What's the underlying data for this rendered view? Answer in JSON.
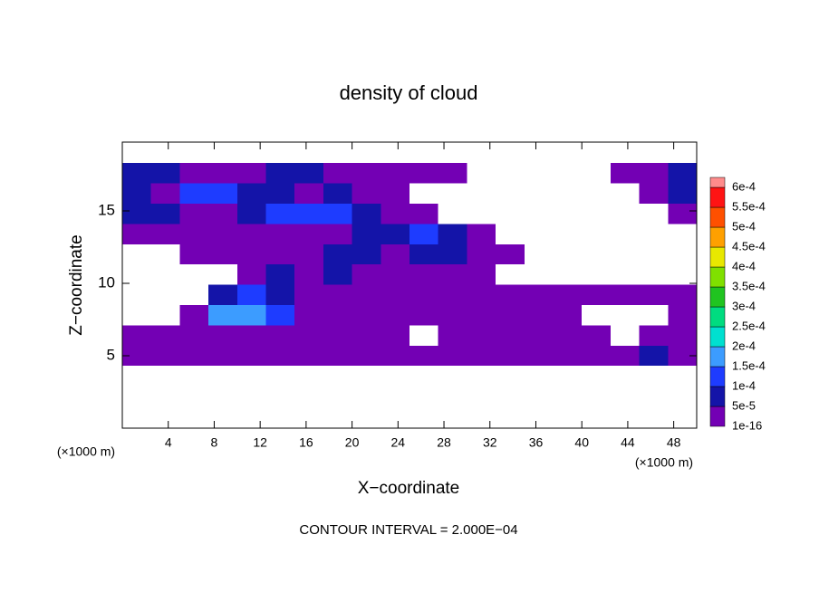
{
  "chart_data": {
    "type": "heatmap",
    "title": "density of cloud",
    "x_label": "X−coordinate",
    "y_label": "Z−coordinate",
    "x_unit": "(×1000 m)",
    "y_unit": "(×1000 m)",
    "footnote": "CONTOUR INTERVAL = 2.000E−04",
    "xlim": [
      0,
      50
    ],
    "ylim": [
      0,
      19.75
    ],
    "xticks": [
      4,
      8,
      12,
      16,
      20,
      24,
      28,
      32,
      36,
      40,
      44,
      48
    ],
    "yticks": [
      5,
      10,
      15
    ],
    "xbins": [
      0,
      2.5,
      5,
      7.5,
      10,
      12.5,
      15,
      17.5,
      20,
      22.5,
      25,
      27.5,
      30,
      32.5,
      35,
      37.5,
      40,
      42.5,
      45,
      47.5,
      50
    ],
    "ybins": [
      4.3,
      5.7,
      7.1,
      8.5,
      9.9,
      11.3,
      12.7,
      14.1,
      15.5,
      16.9,
      18.3
    ],
    "levels": [
      {
        "value": 1e-16,
        "label": "1e-16"
      },
      {
        "value": 5e-05,
        "label": "5e-5"
      },
      {
        "value": 0.0001,
        "label": "1e-4"
      },
      {
        "value": 0.00015,
        "label": "1.5e-4"
      },
      {
        "value": 0.0002,
        "label": "2e-4"
      },
      {
        "value": 0.00025,
        "label": "2.5e-4"
      },
      {
        "value": 0.0003,
        "label": "3e-4"
      },
      {
        "value": 0.00035,
        "label": "3.5e-4"
      },
      {
        "value": 0.0004,
        "label": "4e-4"
      },
      {
        "value": 0.00045,
        "label": "4.5e-4"
      },
      {
        "value": 0.0005,
        "label": "5e-4"
      },
      {
        "value": 0.00055,
        "label": "5.5e-4"
      },
      {
        "value": 0.0006,
        "label": "6e-4"
      }
    ],
    "colors": [
      "#7300b4",
      "#1414a8",
      "#1e3cff",
      "#3c9cff",
      "#00e0d0",
      "#00dc80",
      "#20c420",
      "#80e000",
      "#e8e800",
      "#ffa000",
      "#ff5000",
      "#ff1414",
      "#ff8c8c"
    ],
    "z": [
      [
        1e-16,
        1e-16,
        1e-16,
        1e-16,
        1e-16,
        1e-16,
        1e-16,
        1e-16,
        1e-16,
        1e-16,
        1e-16,
        1e-16,
        1e-16,
        1e-16,
        1e-16,
        1e-16,
        1e-16,
        1e-16,
        5e-05,
        1e-16
      ],
      [
        1e-16,
        1e-16,
        1e-16,
        1e-16,
        1e-16,
        1e-16,
        1e-16,
        1e-16,
        1e-16,
        1e-16,
        null,
        1e-16,
        1e-16,
        1e-16,
        1e-16,
        1e-16,
        1e-16,
        null,
        1e-16,
        1e-16
      ],
      [
        null,
        null,
        1e-16,
        0.00015,
        0.00015,
        0.0001,
        1e-16,
        1e-16,
        1e-16,
        1e-16,
        1e-16,
        1e-16,
        1e-16,
        1e-16,
        1e-16,
        1e-16,
        null,
        null,
        null,
        1e-16
      ],
      [
        null,
        null,
        null,
        5e-05,
        0.0001,
        5e-05,
        1e-16,
        1e-16,
        1e-16,
        1e-16,
        1e-16,
        1e-16,
        1e-16,
        1e-16,
        1e-16,
        1e-16,
        1e-16,
        1e-16,
        1e-16,
        1e-16
      ],
      [
        null,
        null,
        null,
        null,
        1e-16,
        5e-05,
        1e-16,
        5e-05,
        1e-16,
        1e-16,
        1e-16,
        1e-16,
        1e-16,
        null,
        null,
        null,
        null,
        null,
        null,
        null
      ],
      [
        null,
        null,
        1e-16,
        1e-16,
        1e-16,
        1e-16,
        1e-16,
        5e-05,
        5e-05,
        1e-16,
        5e-05,
        5e-05,
        1e-16,
        1e-16,
        null,
        null,
        null,
        null,
        null,
        null
      ],
      [
        1e-16,
        1e-16,
        1e-16,
        1e-16,
        1e-16,
        1e-16,
        1e-16,
        1e-16,
        5e-05,
        5e-05,
        0.0001,
        5e-05,
        1e-16,
        null,
        null,
        null,
        null,
        null,
        null,
        null
      ],
      [
        5e-05,
        5e-05,
        1e-16,
        1e-16,
        5e-05,
        0.0001,
        0.0001,
        0.0001,
        5e-05,
        1e-16,
        1e-16,
        null,
        null,
        null,
        null,
        null,
        null,
        null,
        null,
        1e-16
      ],
      [
        5e-05,
        1e-16,
        0.0001,
        0.0001,
        5e-05,
        5e-05,
        1e-16,
        5e-05,
        1e-16,
        1e-16,
        null,
        null,
        null,
        null,
        null,
        null,
        null,
        null,
        1e-16,
        5e-05
      ],
      [
        5e-05,
        5e-05,
        1e-16,
        1e-16,
        1e-16,
        5e-05,
        5e-05,
        1e-16,
        1e-16,
        1e-16,
        1e-16,
        1e-16,
        null,
        null,
        null,
        null,
        null,
        1e-16,
        1e-16,
        5e-05
      ]
    ]
  }
}
